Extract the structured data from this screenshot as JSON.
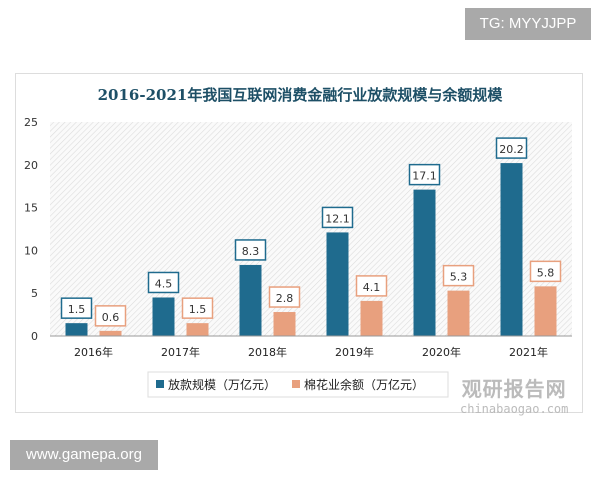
{
  "watermark_tg": "TG: MYYJJPP",
  "watermark_site": "www.gamepa.org",
  "watermark_logo": {
    "cn": "观研报告网",
    "en": "chinabaogao.com"
  },
  "chart_data": {
    "type": "bar",
    "title": "2016-2021年我国互联网消费金融行业放款规模与余额规模",
    "categories": [
      "2016年",
      "2017年",
      "2018年",
      "2019年",
      "2020年",
      "2021年"
    ],
    "series": [
      {
        "name": "放款规模（万亿元）",
        "color": "#1f6b8e",
        "values": [
          1.5,
          4.5,
          8.3,
          12.1,
          17.1,
          20.2
        ]
      },
      {
        "name": "棉花业余额（万亿元）",
        "color": "#e8a07e",
        "values": [
          0.6,
          1.5,
          2.8,
          4.1,
          5.3,
          5.8
        ]
      }
    ],
    "ylim": [
      0,
      25
    ],
    "yticks": [
      0,
      5,
      10,
      15,
      20,
      25
    ],
    "grid": false,
    "legend": "bottom",
    "background": "diagonal-hatch"
  }
}
